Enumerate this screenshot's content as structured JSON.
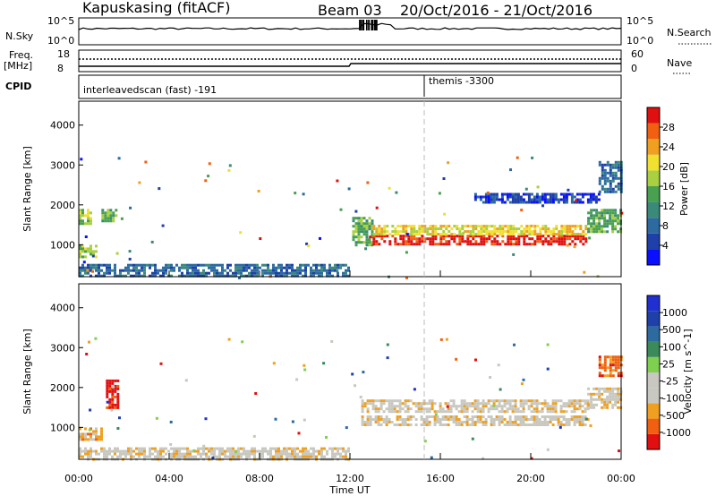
{
  "header": {
    "station": "Kapuskasing (fitACF)",
    "beam": "Beam 03",
    "date_range": "20/Oct/2016 - 21/Oct/2016"
  },
  "top_panels": {
    "nsky_label": "N.Sky",
    "nsky_ticks": [
      "10^5",
      "10^0"
    ],
    "nsearch_ticks": [
      "10^5",
      "10^0"
    ],
    "nsearch_label": "N.Search",
    "freq_label": "Freq.",
    "freq_unit": "[MHz]",
    "freq_ticks": [
      "18",
      "8"
    ],
    "nave_ticks": [
      "60",
      "0"
    ],
    "nave_label": "Nave",
    "cpid_label": "CPID",
    "cpid_1": "interleavedscan (fast) -191",
    "cpid_2": "themis -3300"
  },
  "colors": {
    "cb_power": [
      "#0a10ff",
      "#1e40a8",
      "#2c6aa0",
      "#3a8a7a",
      "#48a050",
      "#a8d040",
      "#f0e030",
      "#f0a020",
      "#f06010",
      "#e01010"
    ],
    "cb_velocity": [
      "#e01010",
      "#f06010",
      "#f0a020",
      "#c8c8c0",
      "#c8c8c0",
      "#80d050",
      "#3a8a5a",
      "#2c6aa0",
      "#1e40a8",
      "#2030d0"
    ]
  },
  "chart_data": [
    {
      "type": "heatmap",
      "name": "power",
      "ylabel": "Slant Range [km]",
      "yticks": [
        1000,
        2000,
        3000,
        4000
      ],
      "ylim": [
        200,
        4600
      ],
      "xlim": [
        0,
        24
      ],
      "colorbar_label": "Power [dB]",
      "colorbar_ticks": [
        "28",
        "24",
        "20",
        "16",
        "12",
        "8",
        "4"
      ],
      "features": [
        {
          "t0": 0,
          "t1": 12,
          "r0": 220,
          "r1": 520,
          "level": 2
        },
        {
          "t0": 0.0,
          "t1": 0.8,
          "r0": 700,
          "r1": 1000,
          "level": 5
        },
        {
          "t0": 0.0,
          "t1": 0.5,
          "r0": 1500,
          "r1": 1900,
          "level": 5
        },
        {
          "t0": 1.0,
          "t1": 1.6,
          "r0": 1600,
          "r1": 1900,
          "level": 4
        },
        {
          "t0": 12.1,
          "t1": 13,
          "r0": 1000,
          "r1": 1700,
          "level": 4
        },
        {
          "t0": 13,
          "t1": 22.5,
          "r0": 1000,
          "r1": 1250,
          "level": 9
        },
        {
          "t0": 13,
          "t1": 22.5,
          "r0": 1250,
          "r1": 1500,
          "level": 6
        },
        {
          "t0": 22.5,
          "t1": 24,
          "r0": 1300,
          "r1": 1900,
          "level": 4
        },
        {
          "t0": 17.5,
          "t1": 23,
          "r0": 2050,
          "r1": 2300,
          "level": 1
        },
        {
          "t0": 23,
          "t1": 24,
          "r0": 2300,
          "r1": 3100,
          "level": 2
        }
      ]
    },
    {
      "type": "heatmap",
      "name": "velocity",
      "ylabel": "Slant Range [km]",
      "yticks": [
        1000,
        2000,
        3000,
        4000
      ],
      "ylim": [
        200,
        4600
      ],
      "xlim": [
        0,
        24
      ],
      "xticks": [
        "00:00",
        "04:00",
        "08:00",
        "12:00",
        "16:00",
        "20:00",
        "00:00"
      ],
      "xlabel": "Time UT",
      "colorbar_label": "Velocity [m s^-1]",
      "colorbar_ticks": [
        "1000",
        "500",
        "100",
        "25",
        "-25",
        "-100",
        "-500",
        "-1000"
      ],
      "features": [
        {
          "t0": 0,
          "t1": 12,
          "r0": 220,
          "r1": 500,
          "level": 3
        },
        {
          "t0": 0.0,
          "t1": 1.0,
          "r0": 700,
          "r1": 1000,
          "level": 2
        },
        {
          "t0": 1.2,
          "t1": 1.7,
          "r0": 1500,
          "r1": 2200,
          "level": 0
        },
        {
          "t0": 12.5,
          "t1": 22.5,
          "r0": 1050,
          "r1": 1300,
          "level": 3
        },
        {
          "t0": 12.5,
          "t1": 22.5,
          "r0": 1400,
          "r1": 1700,
          "level": 3
        },
        {
          "t0": 22.5,
          "t1": 24,
          "r0": 1500,
          "r1": 2000,
          "level": 3
        },
        {
          "t0": 23,
          "t1": 24,
          "r0": 2300,
          "r1": 2800,
          "level": 1
        }
      ]
    }
  ]
}
